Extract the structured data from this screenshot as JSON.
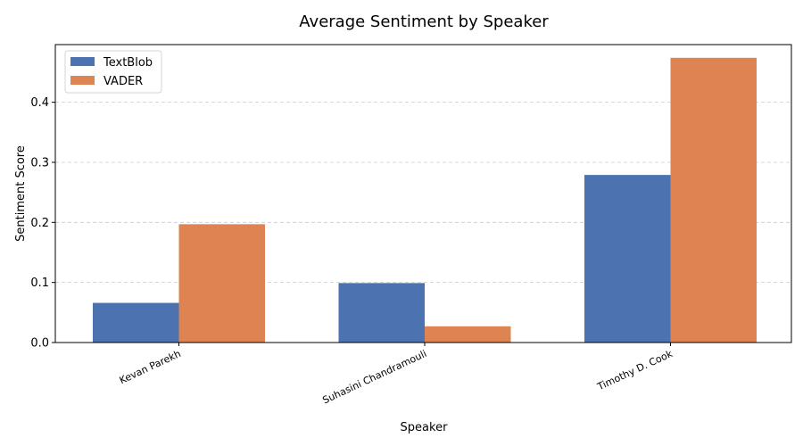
{
  "chart_data": {
    "type": "bar",
    "title": "Average Sentiment by Speaker",
    "xlabel": "Speaker",
    "ylabel": "Sentiment Score",
    "categories": [
      "Kevan Parekh",
      "Suhasini Chandramouli",
      "Timothy D. Cook"
    ],
    "series": [
      {
        "name": "TextBlob",
        "values": [
          0.066,
          0.099,
          0.279
        ],
        "color": "#4c72b0"
      },
      {
        "name": "VADER",
        "values": [
          0.197,
          0.027,
          0.474
        ],
        "color": "#dd8452"
      }
    ],
    "ylim": [
      0,
      0.496
    ],
    "yticks": [
      0.0,
      0.1,
      0.2,
      0.3,
      0.4
    ],
    "ytick_labels": [
      "0.0",
      "0.1",
      "0.2",
      "0.3",
      "0.4"
    ],
    "grid": "y-dashed",
    "legend_position": "top-left"
  }
}
